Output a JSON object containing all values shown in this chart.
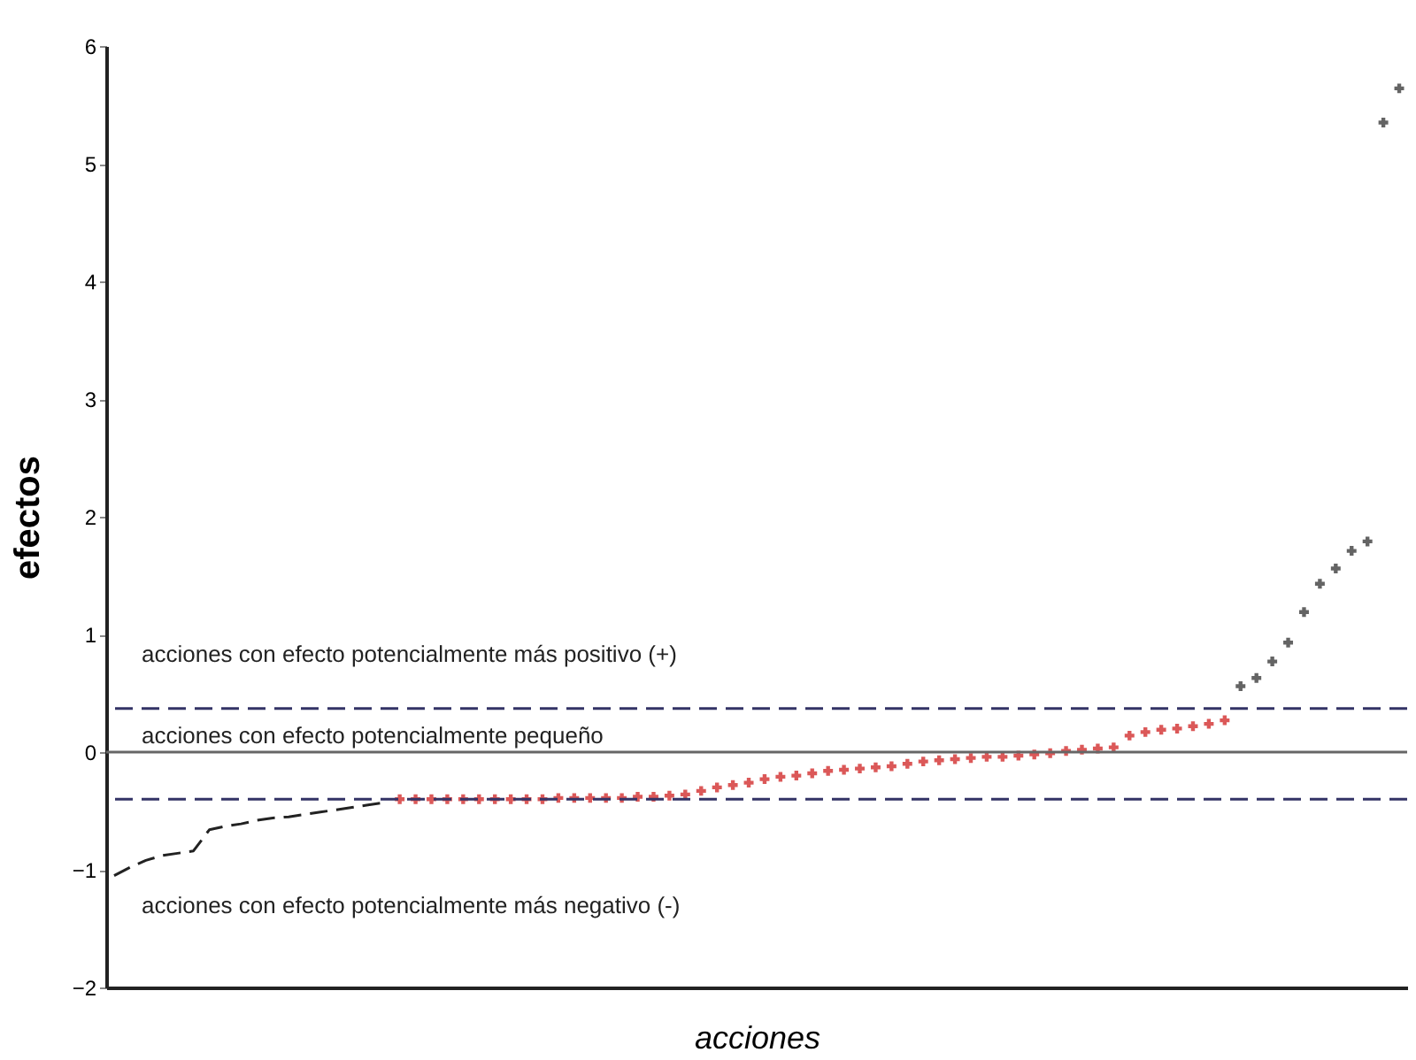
{
  "chart_data": {
    "type": "scatter",
    "xlabel": "acciones",
    "ylabel": "efectos",
    "categories": [
      null,
      null,
      null,
      null,
      null,
      null,
      null,
      null,
      null,
      null,
      null,
      null,
      null,
      null,
      null,
      null,
      null,
      null,
      null,
      null,
      null,
      null,
      null,
      null,
      null,
      null,
      null,
      null,
      null,
      null,
      null,
      null,
      null,
      null,
      null,
      null,
      null,
      null,
      null,
      null,
      null,
      null,
      null,
      null,
      null,
      null,
      null,
      null,
      null,
      null,
      null,
      null,
      null,
      null,
      null,
      null,
      null,
      null,
      null,
      null,
      null,
      null,
      null,
      null,
      null,
      null,
      null,
      null,
      null,
      null,
      null,
      null,
      null,
      null,
      null,
      null,
      null,
      null,
      null,
      null,
      null,
      null
    ],
    "series": [
      {
        "type": "line",
        "line_style": "dashed",
        "color": "#222222",
        "values": [
          -1.05,
          -0.98,
          -0.92,
          -0.88,
          -0.86,
          -0.84,
          -0.66,
          -0.63,
          -0.61,
          -0.58,
          -0.56,
          -0.55,
          -0.53,
          -0.51,
          -0.49,
          -0.47,
          -0.45,
          -0.43,
          null,
          null,
          null,
          null,
          null,
          null,
          null,
          null,
          null,
          null,
          null,
          null,
          null,
          null,
          null,
          null,
          null,
          null,
          null,
          null,
          null,
          null,
          null,
          null,
          null,
          null,
          null,
          null,
          null,
          null,
          null,
          null,
          null,
          null,
          null,
          null,
          null,
          null,
          null,
          null,
          null,
          null,
          null,
          null,
          null,
          null,
          null,
          null,
          null,
          null,
          null,
          null,
          null,
          null,
          null,
          null,
          null,
          null,
          null,
          null,
          null,
          null,
          null,
          null
        ]
      },
      {
        "marker": "cross",
        "color": "#cc1111",
        "values": [
          null,
          null,
          null,
          null,
          null,
          null,
          null,
          null,
          null,
          null,
          null,
          null,
          null,
          null,
          null,
          null,
          null,
          null,
          -0.4,
          -0.4,
          -0.4,
          -0.4,
          -0.4,
          -0.4,
          -0.4,
          -0.4,
          -0.4,
          -0.4,
          -0.39,
          -0.39,
          -0.39,
          -0.39,
          -0.39,
          -0.38,
          -0.38,
          -0.37,
          -0.36,
          -0.33,
          -0.3,
          -0.28,
          -0.26,
          -0.23,
          -0.21,
          -0.2,
          -0.18,
          -0.16,
          -0.15,
          -0.14,
          -0.13,
          -0.12,
          -0.1,
          -0.08,
          -0.07,
          -0.06,
          -0.05,
          -0.04,
          -0.04,
          -0.03,
          -0.02,
          -0.01,
          0.01,
          0.02,
          0.03,
          0.04,
          0.14,
          0.17,
          0.19,
          0.2,
          0.22,
          0.24,
          0.27,
          null,
          null,
          null,
          null,
          null,
          null,
          null,
          null,
          null,
          null,
          null
        ]
      },
      {
        "marker": "cross",
        "color": "#222222",
        "values": [
          null,
          null,
          null,
          null,
          null,
          null,
          null,
          null,
          null,
          null,
          null,
          null,
          null,
          null,
          null,
          null,
          null,
          null,
          null,
          null,
          null,
          null,
          null,
          null,
          null,
          null,
          null,
          null,
          null,
          null,
          null,
          null,
          null,
          null,
          null,
          null,
          null,
          null,
          null,
          null,
          null,
          null,
          null,
          null,
          null,
          null,
          null,
          null,
          null,
          null,
          null,
          null,
          null,
          null,
          null,
          null,
          null,
          null,
          null,
          null,
          null,
          null,
          null,
          null,
          null,
          null,
          null,
          null,
          null,
          null,
          null,
          0.56,
          0.63,
          0.77,
          0.93,
          1.19,
          1.43,
          1.56,
          1.71,
          1.79,
          5.35,
          5.64
        ]
      }
    ],
    "ylim": [
      -2,
      6
    ],
    "yticks": [
      -2,
      -1,
      0,
      1,
      2,
      3,
      4,
      5,
      6
    ],
    "ref_lines": [
      {
        "axis": "y",
        "value": 0.37,
        "color": "#333366",
        "line_style": "dashed"
      },
      {
        "axis": "y",
        "value": -0.4,
        "color": "#333366",
        "line_style": "dashed"
      },
      {
        "axis": "y",
        "value": 0,
        "color": "#666666",
        "line_style": "solid"
      }
    ],
    "annotations": [
      "acciones con efecto potencialmente más positivo (+)",
      "acciones con efecto potencialmente pequeño",
      "acciones con efecto potencialmente más negativo (-)"
    ],
    "tick_labels": "y",
    "grid": false
  }
}
